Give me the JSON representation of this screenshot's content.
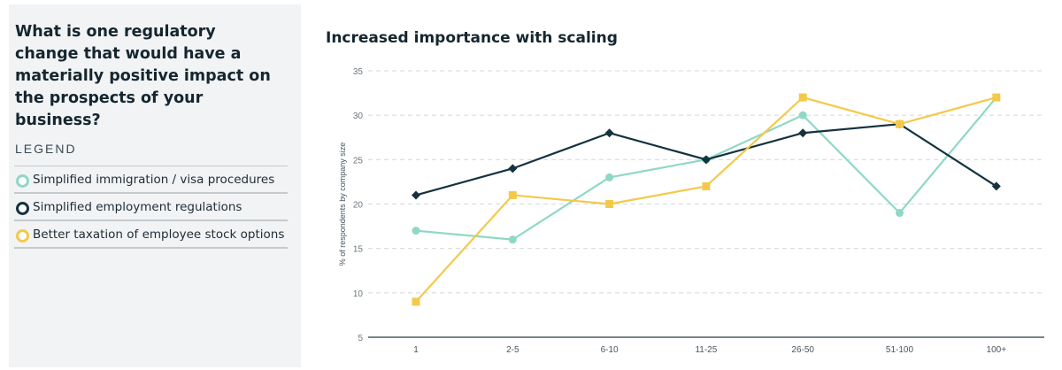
{
  "question": "What is one regulatory change that would have a materially positive impact on the prospects of your business?",
  "legend": {
    "title": "LEGEND",
    "items": [
      {
        "label": "Simplified immigration / visa procedures",
        "color": "#8fd8c6"
      },
      {
        "label": "Simplified employment regulations",
        "color": "#15323f"
      },
      {
        "label": "Better taxation of employee stock options",
        "color": "#f3c94b"
      }
    ]
  },
  "chart_data": {
    "type": "line",
    "title": "Increased importance with scaling",
    "xlabel": "",
    "ylabel": "% of respondents by company size",
    "categories": [
      "1",
      "2-5",
      "6-10",
      "11-25",
      "26-50",
      "51-100",
      "100+"
    ],
    "ylim": [
      5,
      35
    ],
    "yticks": [
      5,
      10,
      15,
      20,
      25,
      30,
      35
    ],
    "grid": true,
    "series": [
      {
        "name": "Simplified immigration / visa procedures",
        "color": "#8fd8c6",
        "marker": "circle",
        "values": [
          17,
          16,
          23,
          25,
          30,
          19,
          32
        ]
      },
      {
        "name": "Simplified employment regulations",
        "color": "#15323f",
        "marker": "diamond",
        "values": [
          21,
          24,
          28,
          25,
          28,
          29,
          22
        ]
      },
      {
        "name": "Better taxation of employee stock options",
        "color": "#f3c94b",
        "marker": "square",
        "values": [
          9,
          21,
          20,
          22,
          32,
          29,
          32
        ]
      }
    ]
  }
}
